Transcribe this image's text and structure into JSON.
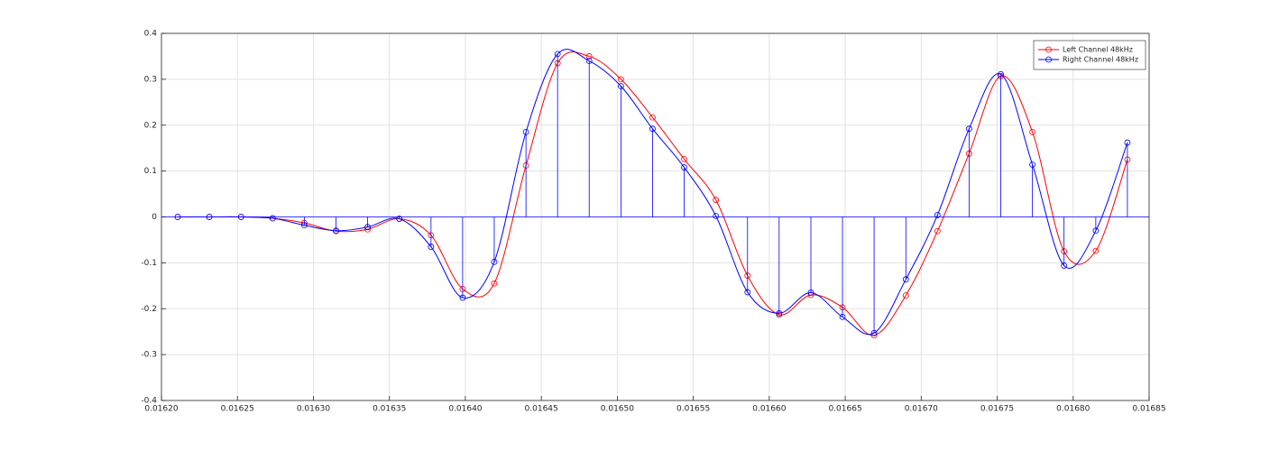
{
  "chart_data": {
    "type": "line",
    "x": [
      0.0162107,
      0.0162315,
      0.0162524,
      0.0162732,
      0.016294,
      0.0163149,
      0.0163357,
      0.0163565,
      0.0163774,
      0.0163982,
      0.016419,
      0.0164399,
      0.0164607,
      0.0164815,
      0.0165024,
      0.0165232,
      0.016544,
      0.0165649,
      0.0165857,
      0.0166065,
      0.0166274,
      0.0166482,
      0.016669,
      0.0166899,
      0.0167107,
      0.0167315,
      0.0167524,
      0.0167732,
      0.016794,
      0.0168149,
      0.0168357
    ],
    "series": [
      {
        "name": "Left Channel 48kHz",
        "color": "#ff0000",
        "values": [
          0,
          0,
          0,
          -0.003,
          -0.013,
          -0.031,
          -0.027,
          -0.004,
          -0.04,
          -0.157,
          -0.145,
          0.112,
          0.335,
          0.35,
          0.3,
          0.217,
          0.126,
          0.037,
          -0.128,
          -0.213,
          -0.17,
          -0.197,
          -0.258,
          -0.171,
          -0.031,
          0.138,
          0.307,
          0.185,
          -0.075,
          -0.074,
          0.125
        ]
      },
      {
        "name": "Right Channel 48kHz",
        "color": "#0000ff",
        "stem": true,
        "values": [
          0,
          0,
          0,
          -0.003,
          -0.018,
          -0.03,
          -0.022,
          -0.004,
          -0.065,
          -0.176,
          -0.098,
          0.185,
          0.355,
          0.34,
          0.285,
          0.192,
          0.108,
          0.002,
          -0.164,
          -0.21,
          -0.165,
          -0.218,
          -0.253,
          -0.136,
          0.004,
          0.192,
          0.311,
          0.114,
          -0.106,
          -0.03,
          0.162
        ]
      }
    ],
    "xlim": [
      0.0162,
      0.01685
    ],
    "xticks": [
      {
        "value": 0.0162,
        "label": "0.01620"
      },
      {
        "value": 0.01625,
        "label": "0.01625"
      },
      {
        "value": 0.0163,
        "label": "0.01630"
      },
      {
        "value": 0.01635,
        "label": "0.01635"
      },
      {
        "value": 0.0164,
        "label": "0.01640"
      },
      {
        "value": 0.01645,
        "label": "0.01645"
      },
      {
        "value": 0.0165,
        "label": "0.01650"
      },
      {
        "value": 0.01655,
        "label": "0.01655"
      },
      {
        "value": 0.0166,
        "label": "0.01660"
      },
      {
        "value": 0.01665,
        "label": "0.01665"
      },
      {
        "value": 0.0167,
        "label": "0.01670"
      },
      {
        "value": 0.01675,
        "label": "0.01675"
      },
      {
        "value": 0.0168,
        "label": "0.01680"
      },
      {
        "value": 0.01685,
        "label": "0.01685"
      }
    ],
    "ylim": [
      -0.4,
      0.4
    ],
    "yticks": [
      -0.4,
      -0.3,
      -0.2,
      -0.1,
      0,
      0.1,
      0.2,
      0.3,
      0.4
    ],
    "grid": true,
    "legend": "top-right"
  }
}
